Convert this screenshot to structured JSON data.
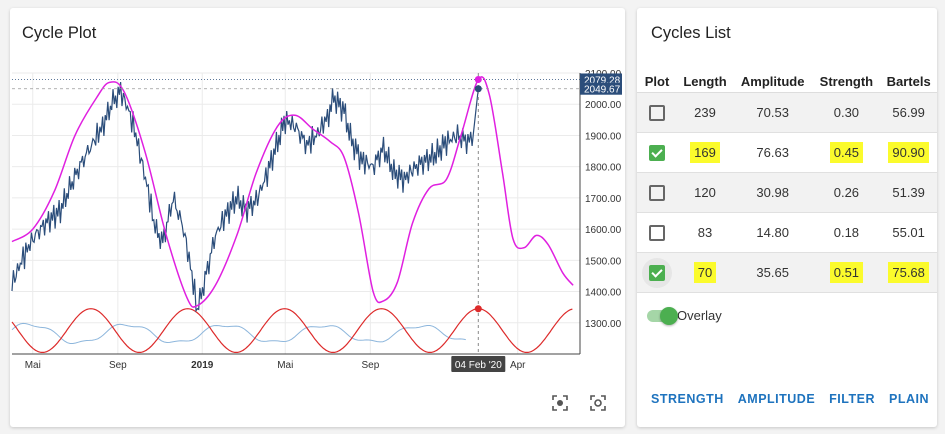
{
  "plot_card": {
    "title": "Cycle Plot"
  },
  "list_card": {
    "title": "Cycles List"
  },
  "chart_data": {
    "type": "line",
    "x_range": [
      "2018-04-01",
      "2020-06-30"
    ],
    "y_range": [
      1200,
      2100
    ],
    "y_ticks": [
      2100.0,
      2000.0,
      1900.0,
      1800.0,
      1700.0,
      1600.0,
      1500.0,
      1400.0,
      1300.0
    ],
    "x_ticks": [
      {
        "label": "Mai",
        "date": "2018-05-01"
      },
      {
        "label": "Sep",
        "date": "2018-09-01"
      },
      {
        "label": "2019",
        "date": "2019-01-01",
        "bold": true
      },
      {
        "label": "Mai",
        "date": "2019-05-01"
      },
      {
        "label": "Sep",
        "date": "2019-09-01"
      },
      {
        "label": "Apr",
        "date": "2020-04-01"
      }
    ],
    "crosshair_label": "04 Feb '20",
    "price_labels": [
      {
        "value": "2079.28",
        "y": 2079.28,
        "color": "#2b4d7a"
      },
      {
        "value": "2049.67",
        "y": 2049.67,
        "color": "#2b4d7a"
      }
    ],
    "grid": true,
    "price_series": {
      "color": "#2b4d7a",
      "points": [
        [
          "2018-04-01",
          1425
        ],
        [
          "2018-04-15",
          1500
        ],
        [
          "2018-05-01",
          1570
        ],
        [
          "2018-05-20",
          1620
        ],
        [
          "2018-06-10",
          1660
        ],
        [
          "2018-06-25",
          1740
        ],
        [
          "2018-07-10",
          1810
        ],
        [
          "2018-07-25",
          1870
        ],
        [
          "2018-08-10",
          1930
        ],
        [
          "2018-08-25",
          2010
        ],
        [
          "2018-09-05",
          2040
        ],
        [
          "2018-09-15",
          1990
        ],
        [
          "2018-09-25",
          1920
        ],
        [
          "2018-10-05",
          1820
        ],
        [
          "2018-10-15",
          1720
        ],
        [
          "2018-10-25",
          1600
        ],
        [
          "2018-11-05",
          1560
        ],
        [
          "2018-11-20",
          1700
        ],
        [
          "2018-12-05",
          1600
        ],
        [
          "2018-12-15",
          1480
        ],
        [
          "2018-12-25",
          1340
        ],
        [
          "2019-01-05",
          1440
        ],
        [
          "2019-01-20",
          1580
        ],
        [
          "2019-02-05",
          1650
        ],
        [
          "2019-02-20",
          1700
        ],
        [
          "2019-03-05",
          1660
        ],
        [
          "2019-03-20",
          1690
        ],
        [
          "2019-04-05",
          1780
        ],
        [
          "2019-04-20",
          1880
        ],
        [
          "2019-05-01",
          1950
        ],
        [
          "2019-05-15",
          1930
        ],
        [
          "2019-06-01",
          1870
        ],
        [
          "2019-06-15",
          1900
        ],
        [
          "2019-07-01",
          1960
        ],
        [
          "2019-07-10",
          2020
        ],
        [
          "2019-07-25",
          1980
        ],
        [
          "2019-08-05",
          1880
        ],
        [
          "2019-08-20",
          1820
        ],
        [
          "2019-09-05",
          1800
        ],
        [
          "2019-09-20",
          1860
        ],
        [
          "2019-10-05",
          1780
        ],
        [
          "2019-10-20",
          1760
        ],
        [
          "2019-11-05",
          1800
        ],
        [
          "2019-11-20",
          1820
        ],
        [
          "2019-12-05",
          1840
        ],
        [
          "2019-12-20",
          1880
        ],
        [
          "2020-01-05",
          1900
        ],
        [
          "2020-01-20",
          1880
        ],
        [
          "2020-01-28",
          1910
        ],
        [
          "2020-02-04",
          2049.67
        ]
      ]
    },
    "cycle_composite": {
      "color": "#e020e0",
      "points": [
        [
          "2018-04-01",
          1560
        ],
        [
          "2018-05-01",
          1600
        ],
        [
          "2018-06-01",
          1720
        ],
        [
          "2018-07-01",
          1900
        ],
        [
          "2018-08-01",
          2020
        ],
        [
          "2018-08-20",
          2070
        ],
        [
          "2018-09-10",
          2040
        ],
        [
          "2018-10-10",
          1850
        ],
        [
          "2018-11-10",
          1580
        ],
        [
          "2018-12-10",
          1380
        ],
        [
          "2018-12-25",
          1355
        ],
        [
          "2019-01-20",
          1420
        ],
        [
          "2019-02-20",
          1580
        ],
        [
          "2019-03-20",
          1780
        ],
        [
          "2019-04-20",
          1930
        ],
        [
          "2019-05-15",
          1965
        ],
        [
          "2019-06-10",
          1920
        ],
        [
          "2019-07-05",
          1880
        ],
        [
          "2019-07-25",
          1830
        ],
        [
          "2019-08-15",
          1650
        ],
        [
          "2019-09-05",
          1400
        ],
        [
          "2019-09-20",
          1370
        ],
        [
          "2019-10-10",
          1430
        ],
        [
          "2019-11-01",
          1620
        ],
        [
          "2019-11-25",
          1730
        ],
        [
          "2019-12-20",
          1760
        ],
        [
          "2020-01-10",
          1900
        ],
        [
          "2020-02-04",
          2079.28
        ],
        [
          "2020-02-20",
          2030
        ],
        [
          "2020-03-10",
          1780
        ],
        [
          "2020-03-25",
          1570
        ],
        [
          "2020-04-10",
          1540
        ],
        [
          "2020-04-28",
          1580
        ],
        [
          "2020-05-15",
          1550
        ],
        [
          "2020-06-05",
          1460
        ],
        [
          "2020-06-20",
          1420
        ]
      ]
    },
    "sub_cycle": {
      "color": "#dd2b2b",
      "period_days": 140,
      "peak_date": "2020-02-04",
      "y_low": 1205,
      "y_high": 1345,
      "start": "2018-04-01",
      "end": "2020-06-20"
    },
    "sub_osc": {
      "color": "#8db6dc",
      "start": "2018-04-01",
      "end": "2020-01-20",
      "y_mid": 1265,
      "amplitude": 28
    }
  },
  "toolbar": {
    "tool1_icon": "focus-icon",
    "tool2_icon": "reset-view-icon"
  },
  "table": {
    "headers": [
      "Plot",
      "Length",
      "Amplitude",
      "Strength",
      "Bartels"
    ],
    "rows": [
      {
        "checked": false,
        "length": "239",
        "amplitude": "70.53",
        "strength": "0.30",
        "bartels": "56.99",
        "highlight": false,
        "halo": false
      },
      {
        "checked": true,
        "length": "169",
        "amplitude": "76.63",
        "strength": "0.45",
        "bartels": "90.90",
        "highlight": true,
        "halo": false
      },
      {
        "checked": false,
        "length": "120",
        "amplitude": "30.98",
        "strength": "0.26",
        "bartels": "51.39",
        "highlight": false,
        "halo": false
      },
      {
        "checked": false,
        "length": "83",
        "amplitude": "14.80",
        "strength": "0.18",
        "bartels": "55.01",
        "highlight": false,
        "halo": false
      },
      {
        "checked": true,
        "length": "70",
        "amplitude": "35.65",
        "strength": "0.51",
        "bartels": "75.68",
        "highlight": true,
        "halo": true
      }
    ]
  },
  "overlay": {
    "label": "Overlay",
    "on": true
  },
  "actions": [
    "STRENGTH",
    "AMPLITUDE",
    "FILTER",
    "PLAIN"
  ]
}
